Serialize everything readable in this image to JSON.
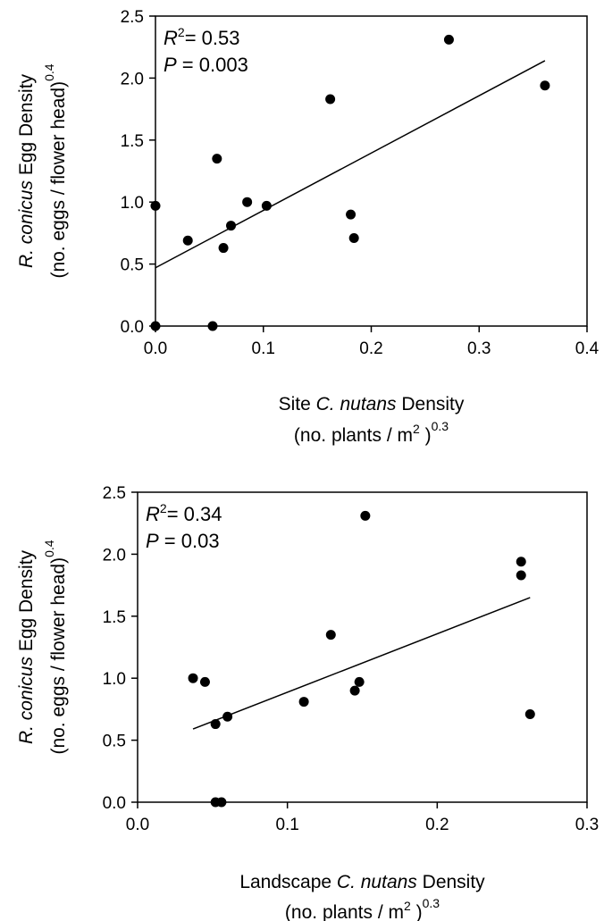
{
  "chart_data": [
    {
      "type": "scatter",
      "title": "",
      "xlabel_parts": [
        "Site ",
        "C. nutans",
        " Density"
      ],
      "xlabel_unit_parts": [
        "(no. plants / m",
        "2",
        " )",
        "0.3"
      ],
      "ylabel_parts": [
        "R. conicus",
        " Egg Density"
      ],
      "ylabel_unit_parts": [
        "(no. eggs / flower head)",
        "0.4"
      ],
      "annotation_r2_parts": [
        "R",
        "2",
        "= 0.53"
      ],
      "annotation_p_parts": [
        "P",
        " = 0.003"
      ],
      "xlim": [
        0.0,
        0.4
      ],
      "ylim": [
        0.0,
        2.5
      ],
      "x_ticks": [
        0.0,
        0.1,
        0.2,
        0.3,
        0.4
      ],
      "x_tick_labels": [
        "0.0",
        "0.1",
        "0.2",
        "0.3",
        "0.4"
      ],
      "y_ticks": [
        0.0,
        0.5,
        1.0,
        1.5,
        2.0,
        2.5
      ],
      "y_tick_labels": [
        "0.0",
        "0.5",
        "1.0",
        "1.5",
        "2.0",
        "2.5"
      ],
      "grid": false,
      "points": [
        {
          "x": 0.0,
          "y": 0.0
        },
        {
          "x": 0.0,
          "y": 0.97
        },
        {
          "x": 0.03,
          "y": 0.69
        },
        {
          "x": 0.053,
          "y": 0.0
        },
        {
          "x": 0.057,
          "y": 1.35
        },
        {
          "x": 0.063,
          "y": 0.63
        },
        {
          "x": 0.07,
          "y": 0.81
        },
        {
          "x": 0.085,
          "y": 1.0
        },
        {
          "x": 0.103,
          "y": 0.97
        },
        {
          "x": 0.162,
          "y": 1.83
        },
        {
          "x": 0.181,
          "y": 0.9
        },
        {
          "x": 0.184,
          "y": 0.71
        },
        {
          "x": 0.272,
          "y": 2.31
        },
        {
          "x": 0.361,
          "y": 1.94
        }
      ],
      "regression": {
        "x": [
          0.0,
          0.361
        ],
        "y": [
          0.47,
          2.14
        ]
      }
    },
    {
      "type": "scatter",
      "title": "",
      "xlabel_parts": [
        "Landscape ",
        "C. nutans",
        " Density"
      ],
      "xlabel_unit_parts": [
        "(no. plants / m",
        "2",
        " )",
        "0.3"
      ],
      "ylabel_parts": [
        "R. conicus",
        " Egg Density"
      ],
      "ylabel_unit_parts": [
        "(no. eggs / flower head)",
        "0.4"
      ],
      "annotation_r2_parts": [
        "R",
        "2",
        "= 0.34"
      ],
      "annotation_p_parts": [
        "P",
        " = 0.03"
      ],
      "xlim": [
        0.0,
        0.3
      ],
      "ylim": [
        0.0,
        2.5
      ],
      "x_ticks": [
        0.0,
        0.1,
        0.2,
        0.3
      ],
      "x_tick_labels": [
        "0.0",
        "0.1",
        "0.2",
        "0.3"
      ],
      "y_ticks": [
        0.0,
        0.5,
        1.0,
        1.5,
        2.0,
        2.5
      ],
      "y_tick_labels": [
        "0.0",
        "0.5",
        "1.0",
        "1.5",
        "2.0",
        "2.5"
      ],
      "grid": false,
      "points": [
        {
          "x": 0.037,
          "y": 1.0
        },
        {
          "x": 0.045,
          "y": 0.97
        },
        {
          "x": 0.052,
          "y": 0.63
        },
        {
          "x": 0.052,
          "y": 0.0
        },
        {
          "x": 0.056,
          "y": 0.0
        },
        {
          "x": 0.06,
          "y": 0.69
        },
        {
          "x": 0.111,
          "y": 0.81
        },
        {
          "x": 0.129,
          "y": 1.35
        },
        {
          "x": 0.145,
          "y": 0.9
        },
        {
          "x": 0.148,
          "y": 0.97
        },
        {
          "x": 0.152,
          "y": 2.31
        },
        {
          "x": 0.256,
          "y": 1.94
        },
        {
          "x": 0.256,
          "y": 1.83
        },
        {
          "x": 0.262,
          "y": 0.71
        }
      ],
      "regression": {
        "x": [
          0.037,
          0.262
        ],
        "y": [
          0.59,
          1.65
        ]
      }
    }
  ]
}
